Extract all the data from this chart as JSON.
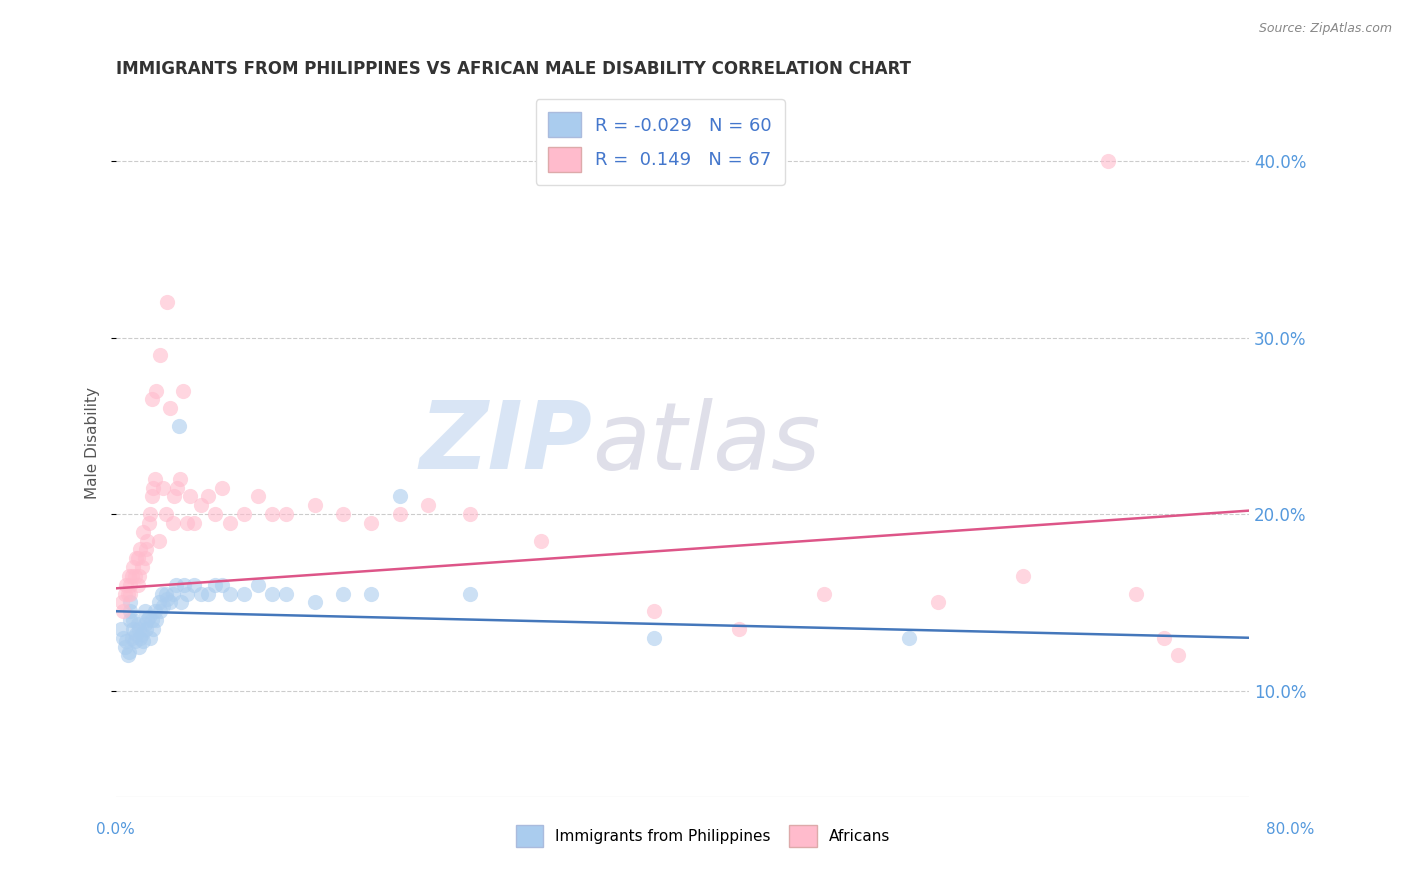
{
  "title": "IMMIGRANTS FROM PHILIPPINES VS AFRICAN MALE DISABILITY CORRELATION CHART",
  "source": "Source: ZipAtlas.com",
  "ylabel": "Male Disability",
  "xlim": [
    0.0,
    0.8
  ],
  "ylim": [
    0.04,
    0.44
  ],
  "yticks": [
    0.1,
    0.2,
    0.3,
    0.4
  ],
  "series": [
    {
      "name": "Immigrants from Philippines",
      "R": -0.029,
      "N": 60,
      "color": "#aaccee",
      "line_color": "#4477bb",
      "x": [
        0.003,
        0.005,
        0.006,
        0.007,
        0.008,
        0.009,
        0.01,
        0.01,
        0.01,
        0.011,
        0.012,
        0.012,
        0.013,
        0.014,
        0.015,
        0.016,
        0.016,
        0.017,
        0.018,
        0.019,
        0.02,
        0.02,
        0.021,
        0.022,
        0.023,
        0.024,
        0.025,
        0.026,
        0.027,
        0.028,
        0.03,
        0.031,
        0.032,
        0.033,
        0.035,
        0.036,
        0.038,
        0.04,
        0.042,
        0.044,
        0.046,
        0.048,
        0.05,
        0.055,
        0.06,
        0.065,
        0.07,
        0.075,
        0.08,
        0.09,
        0.1,
        0.11,
        0.12,
        0.14,
        0.16,
        0.18,
        0.2,
        0.25,
        0.38,
        0.56
      ],
      "y": [
        0.135,
        0.13,
        0.125,
        0.128,
        0.12,
        0.122,
        0.14,
        0.145,
        0.15,
        0.13,
        0.135,
        0.14,
        0.128,
        0.132,
        0.138,
        0.125,
        0.135,
        0.13,
        0.132,
        0.128,
        0.138,
        0.145,
        0.135,
        0.14,
        0.142,
        0.13,
        0.14,
        0.135,
        0.145,
        0.14,
        0.15,
        0.145,
        0.155,
        0.148,
        0.155,
        0.152,
        0.15,
        0.155,
        0.16,
        0.25,
        0.15,
        0.16,
        0.155,
        0.16,
        0.155,
        0.155,
        0.16,
        0.16,
        0.155,
        0.155,
        0.16,
        0.155,
        0.155,
        0.15,
        0.155,
        0.155,
        0.21,
        0.155,
        0.13,
        0.13
      ],
      "trend_x": [
        0.0,
        0.8
      ],
      "trend_y": [
        0.145,
        0.13
      ]
    },
    {
      "name": "Africans",
      "R": 0.149,
      "N": 67,
      "color": "#ffbbcc",
      "line_color": "#dd5588",
      "x": [
        0.004,
        0.005,
        0.006,
        0.007,
        0.008,
        0.009,
        0.01,
        0.01,
        0.011,
        0.012,
        0.013,
        0.014,
        0.015,
        0.015,
        0.016,
        0.017,
        0.018,
        0.019,
        0.02,
        0.021,
        0.022,
        0.023,
        0.024,
        0.025,
        0.025,
        0.026,
        0.027,
        0.028,
        0.03,
        0.031,
        0.033,
        0.035,
        0.036,
        0.038,
        0.04,
        0.041,
        0.043,
        0.045,
        0.047,
        0.05,
        0.052,
        0.055,
        0.06,
        0.065,
        0.07,
        0.075,
        0.08,
        0.09,
        0.1,
        0.11,
        0.12,
        0.14,
        0.16,
        0.18,
        0.2,
        0.22,
        0.25,
        0.3,
        0.38,
        0.44,
        0.5,
        0.58,
        0.64,
        0.7,
        0.72,
        0.74,
        0.75
      ],
      "y": [
        0.15,
        0.145,
        0.155,
        0.16,
        0.155,
        0.165,
        0.155,
        0.16,
        0.165,
        0.17,
        0.165,
        0.175,
        0.16,
        0.175,
        0.165,
        0.18,
        0.17,
        0.19,
        0.175,
        0.18,
        0.185,
        0.195,
        0.2,
        0.21,
        0.265,
        0.215,
        0.22,
        0.27,
        0.185,
        0.29,
        0.215,
        0.2,
        0.32,
        0.26,
        0.195,
        0.21,
        0.215,
        0.22,
        0.27,
        0.195,
        0.21,
        0.195,
        0.205,
        0.21,
        0.2,
        0.215,
        0.195,
        0.2,
        0.21,
        0.2,
        0.2,
        0.205,
        0.2,
        0.195,
        0.2,
        0.205,
        0.2,
        0.185,
        0.145,
        0.135,
        0.155,
        0.15,
        0.165,
        0.4,
        0.155,
        0.13,
        0.12
      ],
      "trend_x": [
        0.0,
        0.8
      ],
      "trend_y": [
        0.158,
        0.202
      ]
    }
  ],
  "watermark_text": "ZIP",
  "watermark_text2": "atlas",
  "background_color": "#ffffff",
  "grid_color": "#cccccc",
  "title_color": "#333333",
  "axis_tick_color": "#5599dd",
  "legend_text_color": "#4477cc"
}
